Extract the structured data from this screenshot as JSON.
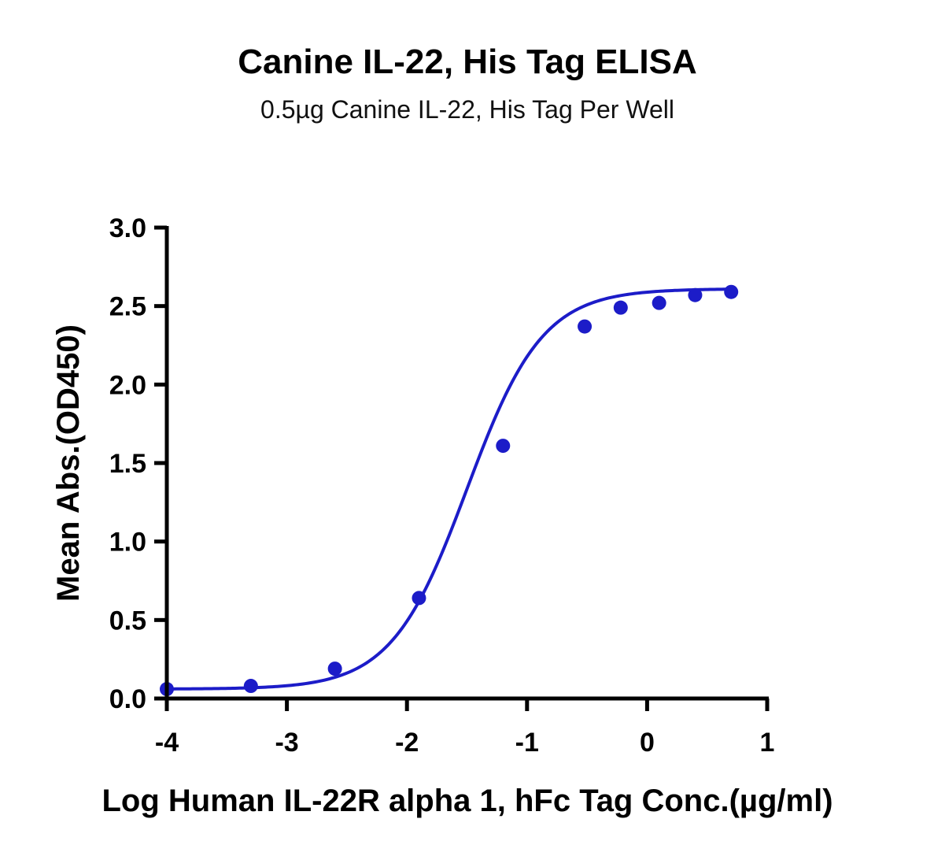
{
  "chart_data": {
    "type": "scatter",
    "title": "Canine IL-22, His Tag ELISA",
    "subtitle": "0.5µg Canine IL-22, His Tag Per Well",
    "xlabel": "Log Human IL-22R alpha 1, hFc Tag Conc.(µg/ml)",
    "ylabel": "Mean Abs.(OD450)",
    "xlim": [
      -4,
      1
    ],
    "ylim": [
      0,
      3.0
    ],
    "x_ticks": [
      -4,
      -3,
      -2,
      -1,
      0,
      1
    ],
    "x_tick_labels": [
      "-4",
      "-3",
      "-2",
      "-1",
      "0",
      "1"
    ],
    "y_ticks": [
      0,
      0.5,
      1.0,
      1.5,
      2.0,
      2.5,
      3.0
    ],
    "y_tick_labels": [
      "0.0",
      "0.5",
      "1.0",
      "1.5",
      "2.0",
      "2.5",
      "3.0"
    ],
    "grid": false,
    "series": [
      {
        "color": "#1c1cc8",
        "x": [
          -4.0,
          -3.3,
          -2.6,
          -1.9,
          -1.2,
          -0.52,
          -0.22,
          0.1,
          0.4,
          0.7
        ],
        "y": [
          0.06,
          0.08,
          0.19,
          0.64,
          1.61,
          2.37,
          2.49,
          2.52,
          2.57,
          2.59
        ]
      }
    ],
    "fit_curve": {
      "model": "4PL",
      "bottom": 0.06,
      "top": 2.61,
      "log_ec50": -1.5,
      "hill": 1.38
    }
  }
}
